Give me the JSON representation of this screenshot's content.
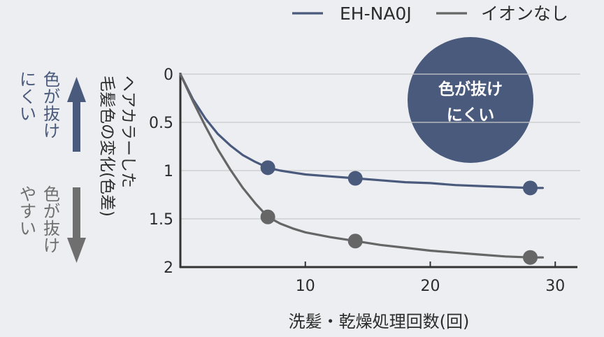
{
  "chart_data": {
    "type": "line",
    "xlabel": "洗髪・乾燥処理回数(回)",
    "ylabel": "ヘアカラーした毛髪色の変化(色差)",
    "x_ticks": [
      10,
      20,
      30
    ],
    "y_ticks": [
      "0",
      "0.5",
      "1",
      "1.5",
      "2"
    ],
    "xlim": [
      0,
      32
    ],
    "ylim": [
      0,
      2
    ],
    "y_inverted": true,
    "grid": "horizontal",
    "legend_position": "top-right",
    "series": [
      {
        "name": "EH-NA0J",
        "color": "#4a5a7c",
        "markers": [
          {
            "x": 7,
            "y": 0.97
          },
          {
            "x": 14,
            "y": 1.08
          },
          {
            "x": 28,
            "y": 1.18
          }
        ],
        "curve": [
          [
            0,
            0
          ],
          [
            1,
            0.26
          ],
          [
            2,
            0.46
          ],
          [
            3,
            0.62
          ],
          [
            4,
            0.74
          ],
          [
            5,
            0.84
          ],
          [
            6,
            0.91
          ],
          [
            7,
            0.97
          ],
          [
            8,
            1.0
          ],
          [
            9,
            1.02
          ],
          [
            10,
            1.04
          ],
          [
            12,
            1.06
          ],
          [
            14,
            1.08
          ],
          [
            16,
            1.1
          ],
          [
            18,
            1.12
          ],
          [
            20,
            1.13
          ],
          [
            22,
            1.15
          ],
          [
            24,
            1.16
          ],
          [
            26,
            1.17
          ],
          [
            28,
            1.18
          ],
          [
            29,
            1.18
          ]
        ]
      },
      {
        "name": "イオンなし",
        "color": "#666666",
        "markers": [
          {
            "x": 7,
            "y": 1.48
          },
          {
            "x": 14,
            "y": 1.73
          },
          {
            "x": 28,
            "y": 1.9
          }
        ],
        "curve": [
          [
            0,
            0
          ],
          [
            1,
            0.28
          ],
          [
            2,
            0.54
          ],
          [
            3,
            0.78
          ],
          [
            4,
            0.99
          ],
          [
            5,
            1.18
          ],
          [
            6,
            1.34
          ],
          [
            7,
            1.48
          ],
          [
            8,
            1.55
          ],
          [
            9,
            1.6
          ],
          [
            10,
            1.64
          ],
          [
            12,
            1.69
          ],
          [
            14,
            1.73
          ],
          [
            16,
            1.77
          ],
          [
            18,
            1.8
          ],
          [
            20,
            1.83
          ],
          [
            22,
            1.85
          ],
          [
            24,
            1.87
          ],
          [
            26,
            1.89
          ],
          [
            28,
            1.9
          ],
          [
            29,
            1.9
          ]
        ]
      }
    ]
  },
  "annotations": {
    "up": {
      "text": "色が抜け\nにくい",
      "color": "#4a5a7c"
    },
    "down": {
      "text": "色が抜け\nやすい",
      "color": "#6f6f6f"
    },
    "badge": {
      "text": "色が抜け\nにくい",
      "color": "#4a5a7c"
    }
  }
}
